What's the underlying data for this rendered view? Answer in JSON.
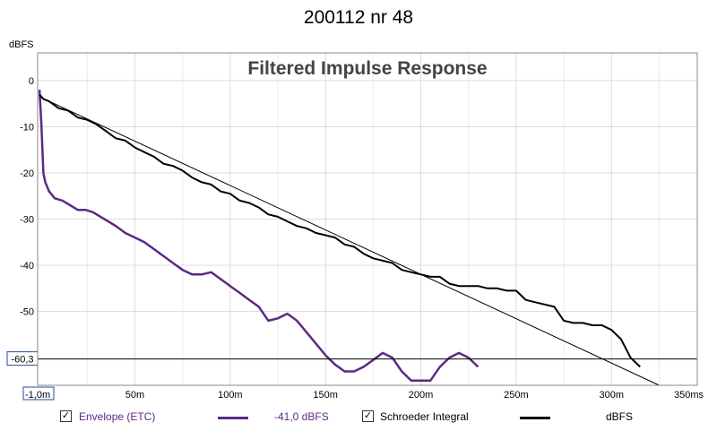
{
  "window": {
    "title": "200112 nr 48"
  },
  "chart_data": {
    "type": "line",
    "title": "Filtered Impulse Response",
    "ylabel": "dBFS",
    "xlabel": "",
    "xlim": [
      -1.0,
      345
    ],
    "ylim": [
      -66,
      6
    ],
    "x_ticks": [
      0,
      50,
      100,
      150,
      200,
      250,
      300
    ],
    "x_tick_labels": [
      "-1,0m",
      "50m",
      "100m",
      "150m",
      "200m",
      "250m",
      "300m"
    ],
    "x_unit_label": "350ms",
    "y_ticks": [
      0,
      -10,
      -20,
      -30,
      -40,
      -50
    ],
    "y_tick_labels": [
      "0",
      "-10",
      "-20",
      "-30",
      "-40",
      "-50"
    ],
    "grid": true,
    "cursor": {
      "y": -60.3,
      "label": "-60,3"
    },
    "series": [
      {
        "name": "Envelope (ETC)",
        "color": "#5b2a86",
        "x": [
          0,
          1,
          2,
          3,
          5,
          8,
          12,
          16,
          20,
          24,
          28,
          32,
          36,
          40,
          45,
          50,
          55,
          60,
          65,
          70,
          75,
          80,
          85,
          90,
          95,
          100,
          105,
          110,
          115,
          120,
          125,
          130,
          135,
          140,
          145,
          150,
          155,
          160,
          165,
          170,
          175,
          180,
          185,
          190,
          195,
          200,
          205,
          210,
          215,
          220,
          225,
          230
        ],
        "y": [
          -2,
          -10,
          -20,
          -22,
          -24,
          -25.5,
          -26,
          -27,
          -28,
          -28,
          -28.5,
          -29.5,
          -30.5,
          -31.5,
          -33,
          -34,
          -35,
          -36.5,
          -38,
          -39.5,
          -41,
          -42,
          -42,
          -41.5,
          -43,
          -44.5,
          -46,
          -47.5,
          -49,
          -52,
          -51.5,
          -50.5,
          -52,
          -54.5,
          -57,
          -59.5,
          -61.5,
          -63,
          -63,
          -62,
          -60.5,
          -59,
          -60,
          -63,
          -65,
          -65,
          -65,
          -62,
          -60,
          -59,
          -60,
          -62
        ]
      },
      {
        "name": "Schroeder Integral",
        "color": "#000000",
        "x": [
          0,
          2,
          5,
          10,
          15,
          20,
          25,
          30,
          35,
          40,
          45,
          50,
          55,
          60,
          65,
          70,
          75,
          80,
          85,
          90,
          95,
          100,
          105,
          110,
          115,
          120,
          125,
          130,
          135,
          140,
          145,
          150,
          155,
          160,
          165,
          170,
          175,
          180,
          185,
          190,
          195,
          200,
          205,
          210,
          215,
          220,
          225,
          230,
          235,
          240,
          245,
          250,
          255,
          260,
          265,
          270,
          275,
          280,
          285,
          290,
          295,
          300,
          305,
          310,
          315
        ],
        "y": [
          -3,
          -4,
          -4.5,
          -6,
          -6.5,
          -8,
          -8.5,
          -9.5,
          -11,
          -12.5,
          -13,
          -14.5,
          -15.5,
          -16.5,
          -18,
          -18.5,
          -19.5,
          -21,
          -22,
          -22.5,
          -24,
          -24.5,
          -26,
          -26.5,
          -27.5,
          -29,
          -29.5,
          -30.5,
          -31.5,
          -32,
          -33,
          -33.5,
          -34,
          -35.5,
          -36,
          -37.5,
          -38.5,
          -39,
          -39.5,
          -41,
          -41.5,
          -42,
          -42.5,
          -42.5,
          -44,
          -44.5,
          -44.5,
          -44.5,
          -45,
          -45,
          -45.5,
          -45.5,
          -47.5,
          -48,
          -48.5,
          -49,
          -52,
          -52.5,
          -52.5,
          -53,
          -53,
          -54,
          -56,
          -60,
          -62
        ]
      },
      {
        "name": "",
        "color": "#000000",
        "x": [
          0,
          325
        ],
        "y": [
          -3.5,
          -66
        ]
      }
    ]
  },
  "legend": {
    "envelope_label": "Envelope (ETC)",
    "envelope_value": "-41,0 dBFS",
    "schroeder_label": "Schroeder Integral",
    "schroeder_value": "dBFS",
    "envelope_color": "#5b2a86",
    "schroeder_color": "#000000",
    "check_mark": "✓"
  }
}
